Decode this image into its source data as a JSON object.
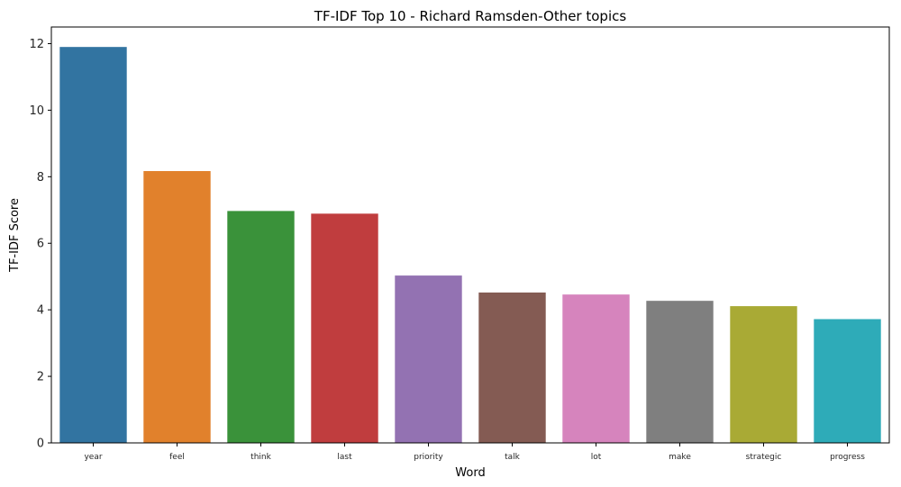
{
  "chart_data": {
    "type": "bar",
    "title": "TF-IDF Top 10 - Richard Ramsden-Other topics",
    "xlabel": "Word",
    "ylabel": "TF-IDF Score",
    "categories": [
      "year",
      "feel",
      "think",
      "last",
      "priority",
      "talk",
      "lot",
      "make",
      "strategic",
      "progress"
    ],
    "values": [
      11.9,
      8.17,
      6.97,
      6.89,
      5.03,
      4.52,
      4.46,
      4.27,
      4.11,
      3.72
    ],
    "colors": [
      "#3274a1",
      "#e1812c",
      "#3a923a",
      "#c03d3e",
      "#9372b2",
      "#845b53",
      "#d684bd",
      "#7f7f7f",
      "#a9aa35",
      "#2eabb8"
    ],
    "ylim": [
      0,
      12.5
    ],
    "yticks": [
      0,
      2,
      4,
      6,
      8,
      10,
      12
    ],
    "grid": false,
    "legend": "none"
  }
}
